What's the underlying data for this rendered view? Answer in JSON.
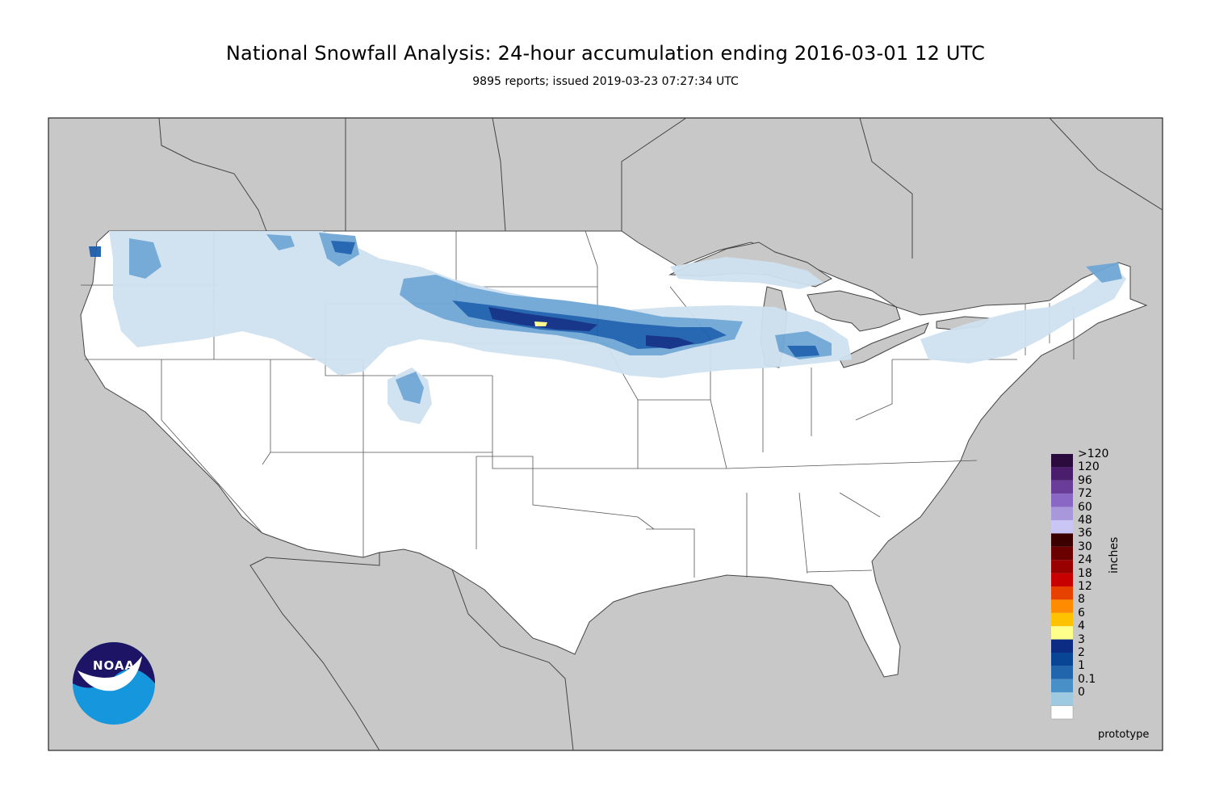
{
  "title": "National Snowfall Analysis: 24-hour accumulation ending 2016-03-01 12 UTC",
  "subtitle": "9895 reports; issued 2019-03-23 07:27:34 UTC",
  "legend": {
    "units_label": "inches",
    "levels": [
      ">120",
      "120",
      "96",
      "72",
      "60",
      "48",
      "36",
      "30",
      "24",
      "18",
      "12",
      "8",
      "6",
      "4",
      "3",
      "2",
      "1",
      "0.1",
      "0"
    ],
    "colors": [
      "#2b0a3d",
      "#4b1d6d",
      "#6a3d9a",
      "#8a67c4",
      "#a997dc",
      "#c9c5f5",
      "#3a0000",
      "#6b0000",
      "#990000",
      "#c80000",
      "#e64100",
      "#ff8c00",
      "#ffc200",
      "#ffff8c",
      "#0c2c84",
      "#084594",
      "#2166ac",
      "#4a90c8",
      "#9ecae1"
    ]
  },
  "colors": {
    "land_outside": "#c8c8c8",
    "us_land": "#ffffff",
    "snow_light": "#cfe1f0",
    "snow_medium": "#6fa7d6",
    "snow_heavy": "#1d5fae",
    "snow_very_heavy": "#0c2c84",
    "snow_extreme": "#ffff8c"
  },
  "logo": {
    "text": "NOAA"
  },
  "footer": {
    "label": "prototype"
  }
}
